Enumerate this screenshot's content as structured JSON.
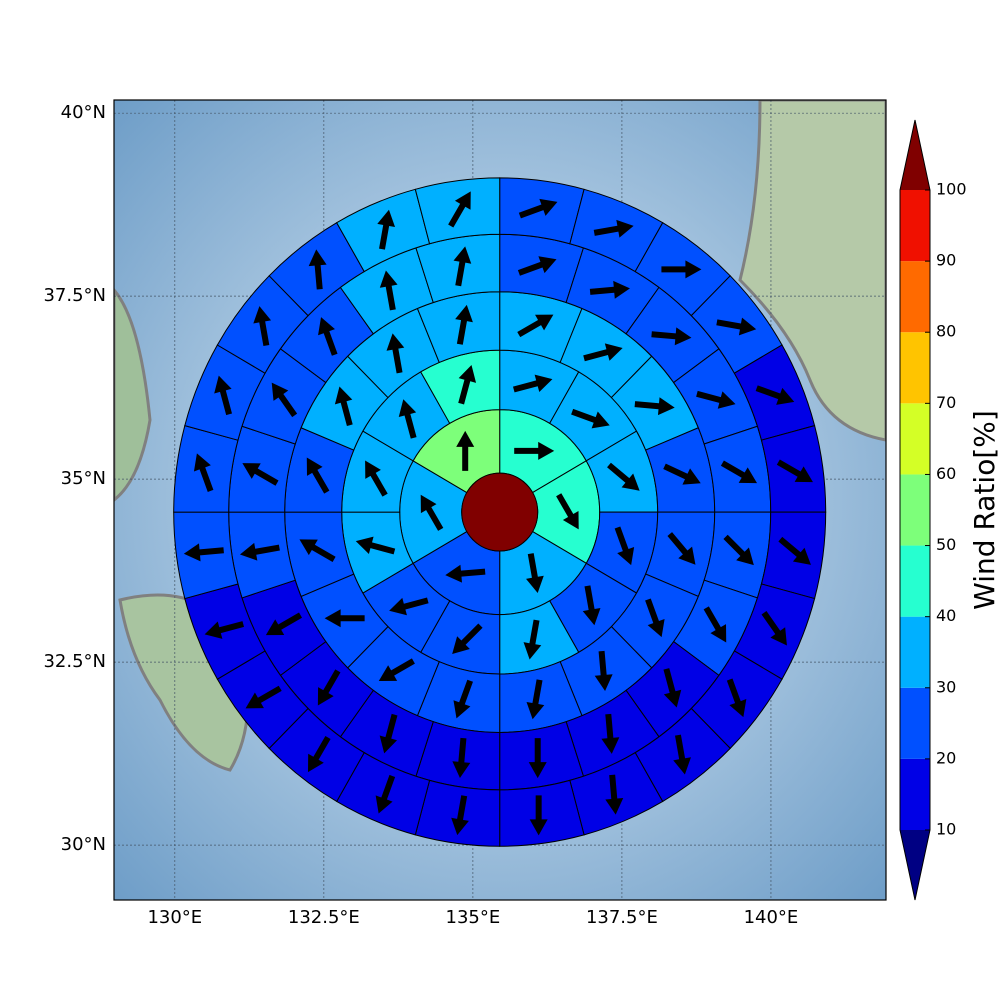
{
  "chart_data": {
    "type": "sector",
    "xticks": [
      {
        "value": 130,
        "label": "130°E"
      },
      {
        "value": 132.5,
        "label": "132.5°E"
      },
      {
        "value": 135,
        "label": "135°E"
      },
      {
        "value": 137.5,
        "label": "137.5°E"
      },
      {
        "value": 140,
        "label": "140°E"
      }
    ],
    "yticks": [
      {
        "value": 30,
        "label": "30°N"
      },
      {
        "value": 32.5,
        "label": "32.5°N"
      },
      {
        "value": 35,
        "label": "35°N"
      },
      {
        "value": 37.5,
        "label": "37.5°N"
      },
      {
        "value": 40,
        "label": "40°N"
      }
    ],
    "xlim": [
      128.98,
      141.93
    ],
    "ylim": [
      29.25,
      40.18
    ],
    "grid": true,
    "center": {
      "lon": 135.45,
      "lat": 34.55,
      "value": 105
    },
    "rings": [
      {
        "values": [
          45,
          45,
          35,
          25,
          35,
          55
        ],
        "directions": [
          90,
          150,
          170,
          265,
          330,
          0
        ]
      },
      {
        "values": [
          35,
          35,
          35,
          25,
          25,
          35,
          25,
          25,
          35,
          35,
          35,
          45
        ],
        "directions": [
          75,
          110,
          130,
          160,
          170,
          190,
          225,
          255,
          285,
          330,
          345,
          15
        ]
      },
      {
        "values": [
          35,
          35,
          35,
          25,
          25,
          25,
          25,
          25,
          25,
          25,
          25,
          25,
          25,
          35,
          35,
          35
        ],
        "directions": [
          60,
          75,
          95,
          115,
          140,
          160,
          175,
          190,
          200,
          240,
          270,
          300,
          330,
          345,
          350,
          10
        ]
      },
      {
        "values": [
          25,
          25,
          25,
          25,
          25,
          25,
          25,
          15,
          15,
          15,
          15,
          15,
          15,
          15,
          25,
          25,
          25,
          25,
          35,
          35
        ],
        "directions": [
          70,
          85,
          95,
          105,
          120,
          135,
          150,
          165,
          175,
          180,
          185,
          195,
          210,
          240,
          260,
          300,
          325,
          340,
          350,
          10
        ]
      },
      {
        "values": [
          25,
          25,
          25,
          25,
          15,
          15,
          15,
          15,
          15,
          15,
          15,
          15,
          15,
          15,
          15,
          15,
          15,
          25,
          25,
          25,
          25,
          25,
          35,
          35
        ],
        "directions": [
          70,
          80,
          90,
          100,
          110,
          120,
          130,
          145,
          160,
          170,
          175,
          180,
          190,
          200,
          210,
          240,
          255,
          265,
          340,
          345,
          350,
          355,
          10,
          30
        ]
      }
    ],
    "colorbar": {
      "label": "Wind Ratio[%]",
      "ticks": [
        10,
        20,
        30,
        40,
        50,
        60,
        70,
        80,
        90,
        100
      ],
      "colors": [
        "#0000e6",
        "#0050ff",
        "#00b0ff",
        "#26ffd0",
        "#7dff7a",
        "#d4ff26",
        "#ffc400",
        "#ff6a00",
        "#f01000"
      ],
      "under_color": "#000083",
      "over_color": "#800000"
    }
  }
}
